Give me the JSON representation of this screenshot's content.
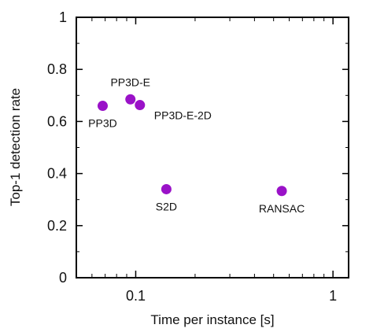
{
  "chart_data": {
    "type": "scatter",
    "title": "",
    "xlabel": "Time per instance [s]",
    "ylabel": "Top-1 detection rate",
    "xscale": "log",
    "xlim": [
      0.05,
      1.2
    ],
    "ylim": [
      0,
      1
    ],
    "grid": false,
    "legend": "none",
    "marker_color": "#9a12c8",
    "x_ticks": [
      {
        "value": 0.1,
        "label": "0.1"
      },
      {
        "value": 1,
        "label": "1"
      }
    ],
    "y_ticks": [
      {
        "value": 0,
        "label": "0"
      },
      {
        "value": 0.2,
        "label": "0.2"
      },
      {
        "value": 0.4,
        "label": "0.4"
      },
      {
        "value": 0.6,
        "label": "0.6"
      },
      {
        "value": 0.8,
        "label": "0.8"
      },
      {
        "value": 1,
        "label": "1"
      }
    ],
    "points": [
      {
        "label": "PP3D",
        "x": 0.068,
        "y": 0.66,
        "label_pos": "below"
      },
      {
        "label": "PP3D-E",
        "x": 0.094,
        "y": 0.685,
        "label_pos": "above"
      },
      {
        "label": "PP3D-E-2D",
        "x": 0.105,
        "y": 0.663,
        "label_pos": "below-right"
      },
      {
        "label": "S2D",
        "x": 0.143,
        "y": 0.34,
        "label_pos": "below"
      },
      {
        "label": "RANSAC",
        "x": 0.55,
        "y": 0.333,
        "label_pos": "below"
      }
    ]
  }
}
